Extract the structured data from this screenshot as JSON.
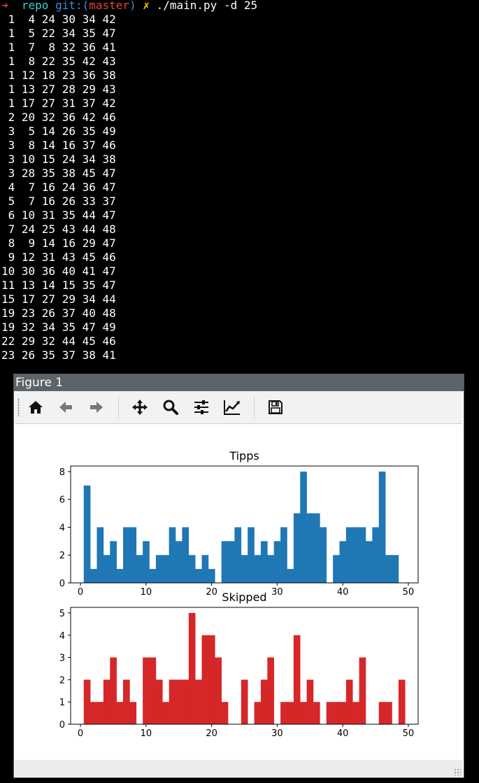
{
  "terminal": {
    "prompt": {
      "arrow": "➜",
      "dir": "repo",
      "git_prefix": "git:(",
      "branch": "master",
      "git_suffix": ")",
      "dirty": "✗",
      "command": "./main.py -d 25"
    },
    "lines": [
      " 1  4 24 30 34 42",
      " 1  5 22 34 35 47",
      " 1  7  8 32 36 41",
      " 1  8 22 35 42 43",
      " 1 12 18 23 36 38",
      " 1 13 27 28 29 43",
      " 1 17 27 31 37 42",
      " 2 20 32 36 42 46",
      " 3  5 14 26 35 49",
      " 3  8 14 16 37 46",
      " 3 10 15 24 34 38",
      " 3 28 35 38 45 47",
      " 4  7 16 24 36 47",
      " 5  7 16 26 33 37",
      " 6 10 31 35 44 47",
      " 7 24 25 43 44 48",
      " 8  9 14 16 29 47",
      " 9 12 31 43 45 46",
      "10 30 36 40 41 47",
      "11 13 14 15 35 47",
      "15 17 27 29 34 44",
      "19 23 26 37 40 48",
      "19 32 34 35 47 49",
      "22 29 32 44 45 46",
      "23 26 35 37 38 41"
    ]
  },
  "window": {
    "title": "Figure 1",
    "toolbar": [
      "home-icon",
      "back-icon",
      "forward-icon",
      "pan-icon",
      "zoom-icon",
      "configure-subplots-icon",
      "edit-axis-icon",
      "save-icon"
    ]
  },
  "chart_data": [
    {
      "type": "bar",
      "title": "Tipps",
      "color": "#1f77b4",
      "x": [
        1,
        2,
        3,
        4,
        5,
        6,
        7,
        8,
        9,
        10,
        11,
        12,
        13,
        14,
        15,
        16,
        17,
        18,
        19,
        20,
        21,
        22,
        23,
        24,
        25,
        26,
        27,
        28,
        29,
        30,
        31,
        32,
        33,
        34,
        35,
        36,
        37,
        38,
        39,
        40,
        41,
        42,
        43,
        44,
        45,
        46,
        47,
        48,
        49
      ],
      "values": [
        7,
        1,
        4,
        2,
        3,
        1,
        4,
        4,
        2,
        3,
        1,
        2,
        2,
        4,
        3,
        4,
        2,
        1,
        2,
        1,
        0,
        3,
        3,
        4,
        2,
        4,
        2,
        3,
        2,
        3,
        4,
        1,
        5,
        8,
        5,
        5,
        4,
        0,
        2,
        3,
        4,
        4,
        4,
        3,
        4,
        8,
        2,
        2,
        0
      ],
      "xticks": [
        0,
        10,
        20,
        30,
        40,
        50
      ],
      "yticks": [
        0,
        2,
        4,
        6,
        8
      ],
      "xlim": [
        -1.5,
        51.5
      ],
      "ylim": [
        0,
        8.4
      ]
    },
    {
      "type": "bar",
      "title": "Skipped",
      "color": "#d62728",
      "x": [
        1,
        2,
        3,
        4,
        5,
        6,
        7,
        8,
        9,
        10,
        11,
        12,
        13,
        14,
        15,
        16,
        17,
        18,
        19,
        20,
        21,
        22,
        23,
        24,
        25,
        26,
        27,
        28,
        29,
        30,
        31,
        32,
        33,
        34,
        35,
        36,
        37,
        38,
        39,
        40,
        41,
        42,
        43,
        44,
        45,
        46,
        47,
        48,
        49
      ],
      "values": [
        2,
        1,
        1,
        2,
        3,
        1,
        2,
        1,
        0,
        3,
        3,
        2,
        1,
        2,
        2,
        2,
        5,
        2,
        4,
        4,
        3,
        1,
        0,
        0,
        2,
        0,
        1,
        2,
        3,
        0,
        1,
        1,
        4,
        1,
        2,
        1,
        0,
        1,
        1,
        1,
        2,
        1,
        3,
        0,
        0,
        1,
        1,
        0,
        2
      ],
      "xticks": [
        0,
        10,
        20,
        30,
        40,
        50
      ],
      "yticks": [
        0,
        1,
        2,
        3,
        4,
        5
      ],
      "xlim": [
        -1.5,
        51.5
      ],
      "ylim": [
        0,
        5.25
      ]
    }
  ]
}
